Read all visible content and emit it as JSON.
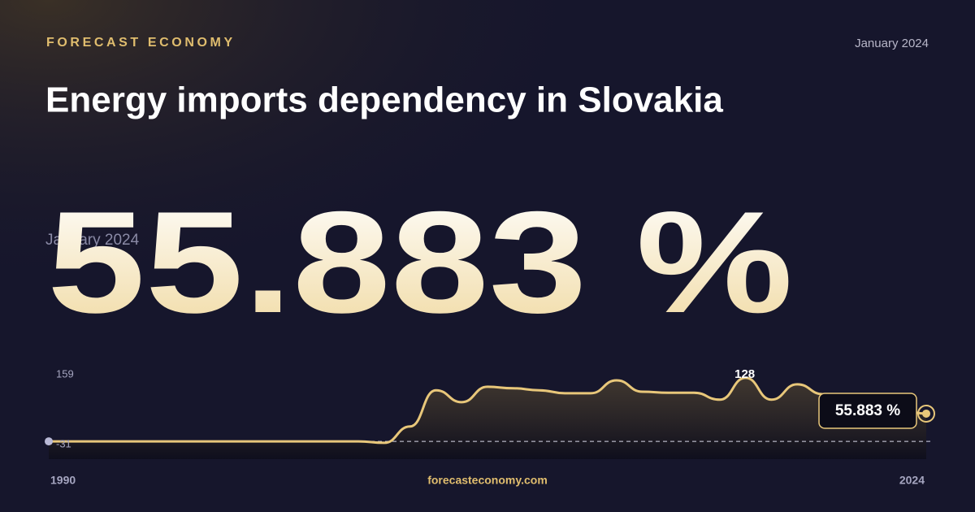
{
  "brand": "FORECAST ECONOMY",
  "date": "January 2024",
  "site": "forecasteconomy.com",
  "chart_data": {
    "type": "line",
    "title": "Energy imports dependency in Slovakia",
    "x": [
      1990,
      1991,
      1992,
      1993,
      1994,
      1995,
      1996,
      1997,
      1998,
      1999,
      2000,
      2001,
      2002,
      2003,
      2004,
      2005,
      2006,
      2007,
      2008,
      2009,
      2010,
      2011,
      2012,
      2013,
      2014,
      2015,
      2016,
      2017,
      2018,
      2019,
      2020,
      2021,
      2022,
      2023,
      2024
    ],
    "series": [
      {
        "name": "Energy imports dependency",
        "color": "#e8c77a",
        "values": [
          0,
          0,
          0,
          0,
          0,
          0,
          0,
          0,
          0,
          0,
          0,
          0,
          0,
          -3,
          30,
          103,
          79,
          110,
          107,
          103,
          97,
          97,
          123,
          100,
          98,
          98,
          84,
          128,
          84,
          115,
          95,
          80,
          70,
          62,
          55.883
        ],
        "value_labels": [
          null,
          null,
          null,
          null,
          null,
          null,
          null,
          null,
          null,
          null,
          null,
          null,
          null,
          null,
          null,
          null,
          null,
          null,
          null,
          null,
          null,
          null,
          null,
          null,
          null,
          null,
          null,
          null,
          null,
          null,
          null,
          null,
          null,
          null,
          "55.883 %"
        ]
      }
    ],
    "xlim": [
      1990,
      2024
    ],
    "xticks": [
      1990,
      2024
    ],
    "ylim": [
      -31,
      159
    ],
    "yticks": [
      -31,
      159
    ],
    "grid": false
  }
}
